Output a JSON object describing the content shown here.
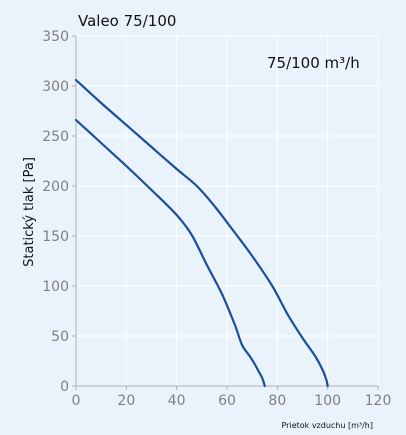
{
  "chart_data": {
    "type": "line",
    "title": "Valeo 75/100",
    "annotation": "75/100 m³/h",
    "xlabel": "Prietok vzduchu [m³/h]",
    "ylabel": "Statický tlak [Pa]",
    "xlim": [
      0,
      120
    ],
    "ylim": [
      0,
      350
    ],
    "xticks": [
      "0",
      "20",
      "40",
      "60",
      "80",
      "100",
      "120"
    ],
    "yticks": [
      "0",
      "50",
      "100",
      "150",
      "200",
      "250",
      "300",
      "350"
    ],
    "grid": true,
    "series": [
      {
        "color": "#1a4f9c",
        "x": [
          0,
          10,
          20,
          30,
          40,
          46,
          52,
          58,
          63,
          66,
          69,
          71,
          72.5,
          74,
          75
        ],
        "y": [
          266,
          243,
          220,
          196,
          171,
          151,
          121,
          92,
          62,
          41,
          30,
          22,
          15,
          8,
          0
        ]
      },
      {
        "color": "#1a4f9c",
        "x": [
          0,
          10,
          20,
          30,
          40,
          48,
          55,
          62,
          70,
          78,
          84,
          90,
          95,
          98,
          99.5,
          100
        ],
        "y": [
          306,
          283,
          261,
          239,
          217,
          200,
          180,
          157,
          130,
          100,
          72,
          48,
          30,
          16,
          6,
          0
        ]
      }
    ]
  }
}
